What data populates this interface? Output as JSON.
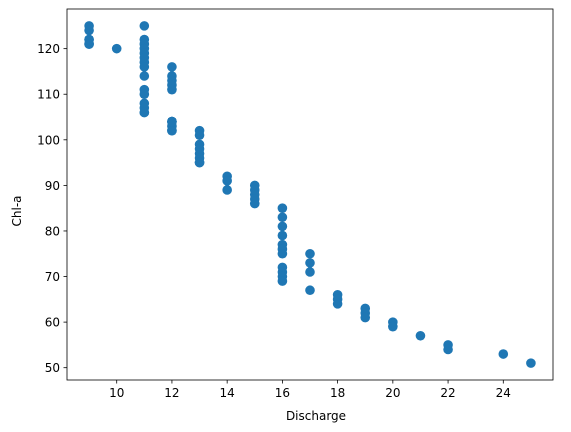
{
  "chart_data": {
    "type": "scatter",
    "title": "",
    "xlabel": "Discharge",
    "ylabel": "Chl-a",
    "xlim": [
      8.2,
      25.8
    ],
    "ylim": [
      47.3,
      128.7
    ],
    "xticks": [
      10,
      12,
      14,
      16,
      18,
      20,
      22,
      24
    ],
    "yticks": [
      50,
      60,
      70,
      80,
      90,
      100,
      110,
      120
    ],
    "grid": false,
    "legend": "none",
    "marker_color": "#1f77b4",
    "series": [
      {
        "x": [
          9,
          9,
          9,
          9,
          9,
          9,
          10,
          11,
          11,
          11,
          11,
          11,
          11,
          11,
          11,
          11,
          11,
          11,
          11,
          11,
          11,
          11,
          12,
          12,
          12,
          12,
          12,
          12,
          12,
          12,
          12,
          12,
          12,
          13,
          13,
          13,
          13,
          13,
          13,
          13,
          13,
          14,
          14,
          14,
          15,
          15,
          15,
          15,
          15,
          16,
          16,
          16,
          16,
          16,
          16,
          16,
          16,
          16,
          16,
          16,
          17,
          17,
          17,
          17,
          18,
          18,
          18,
          19,
          19,
          19,
          20,
          20,
          21,
          22,
          22,
          24,
          25
        ],
        "y": [
          125,
          124,
          122,
          122,
          121,
          121,
          120,
          125,
          122,
          121,
          120,
          119,
          118,
          117,
          116,
          114,
          111,
          110,
          108,
          107,
          106,
          106,
          116,
          114,
          113,
          112,
          111,
          104,
          104,
          103,
          102,
          102,
          104,
          102,
          101,
          99,
          98,
          97,
          96,
          95,
          95,
          92,
          91,
          89,
          90,
          89,
          88,
          87,
          86,
          85,
          83,
          81,
          79,
          77,
          76,
          75,
          72,
          71,
          70,
          69,
          75,
          73,
          71,
          67,
          66,
          65,
          64,
          63,
          62,
          61,
          60,
          59,
          57,
          55,
          54,
          53,
          51
        ]
      }
    ]
  }
}
